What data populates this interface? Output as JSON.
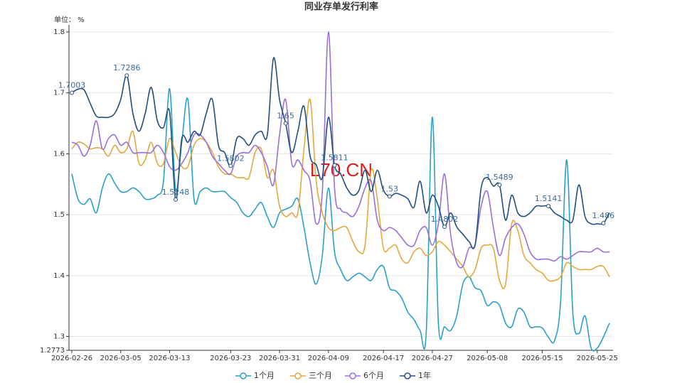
{
  "chart_data": {
    "type": "line",
    "title": "同业存单发行利率",
    "y_unit_label": "单位： %",
    "watermark": "L70.CN",
    "categories": [
      "2026-02-26",
      null,
      null,
      null,
      null,
      null,
      null,
      null,
      "2026-03-05",
      null,
      null,
      null,
      null,
      null,
      null,
      null,
      "2026-03-13",
      null,
      null,
      null,
      null,
      null,
      null,
      null,
      null,
      null,
      "2026-03-23",
      null,
      null,
      null,
      null,
      null,
      null,
      null,
      "2026-03-31",
      null,
      null,
      null,
      null,
      null,
      null,
      null,
      "2026-04-09",
      null,
      null,
      null,
      null,
      null,
      null,
      null,
      null,
      "2026-04-17",
      null,
      null,
      null,
      null,
      null,
      null,
      null,
      "2026-04-27",
      null,
      null,
      null,
      null,
      null,
      null,
      null,
      null,
      "2026-05-08",
      null,
      null,
      null,
      null,
      null,
      null,
      null,
      null,
      "2026-05-15",
      null,
      null,
      null,
      null,
      null,
      null,
      null,
      null,
      "2026-05-25",
      null,
      null
    ],
    "ylim": [
      1.2773,
      1.8
    ],
    "yticks": [
      1.2773,
      1.3,
      1.4,
      1.5,
      1.6,
      1.7,
      1.8
    ],
    "grid": true,
    "legend": "bottom",
    "smooth": true,
    "series": [
      {
        "name": "1个月",
        "color": "#2a9fc9",
        "values": [
          1.567,
          1.526,
          1.517,
          1.526,
          1.503,
          1.544,
          1.567,
          1.552,
          1.538,
          1.538,
          1.544,
          1.538,
          1.526,
          1.526,
          1.532,
          1.555,
          1.707,
          1.54,
          1.619,
          1.689,
          1.526,
          1.538,
          1.544,
          1.538,
          1.538,
          1.538,
          1.528,
          1.52,
          1.503,
          1.497,
          1.509,
          1.52,
          1.497,
          1.479,
          1.503,
          1.509,
          1.514,
          1.526,
          1.479,
          1.421,
          1.386,
          1.433,
          1.544,
          1.439,
          1.41,
          1.392,
          1.398,
          1.404,
          1.398,
          1.392,
          1.41,
          1.415,
          1.38,
          1.375,
          1.363,
          1.34,
          1.328,
          1.31,
          1.305,
          1.66,
          1.322,
          1.316,
          1.31,
          1.334,
          1.386,
          1.398,
          1.38,
          1.375,
          1.351,
          1.357,
          1.351,
          1.322,
          1.316,
          1.345,
          1.34,
          1.316,
          1.316,
          1.314,
          1.299,
          1.293,
          1.357,
          1.59,
          1.34,
          1.305,
          1.334,
          1.281,
          1.281,
          1.299,
          1.322
        ]
      },
      {
        "name": "三个月",
        "color": "#e3a83c",
        "values": [
          1.608,
          1.619,
          1.616,
          1.608,
          1.61,
          1.608,
          1.596,
          1.614,
          1.602,
          1.608,
          1.637,
          1.584,
          1.59,
          1.619,
          1.584,
          1.584,
          1.625,
          1.602,
          1.579,
          1.579,
          1.614,
          1.625,
          1.619,
          1.602,
          1.579,
          1.567,
          1.567,
          1.561,
          1.561,
          1.561,
          1.602,
          1.608,
          1.561,
          1.573,
          1.514,
          1.497,
          1.503,
          1.503,
          1.608,
          1.689,
          1.555,
          1.503,
          1.479,
          1.474,
          1.479,
          1.479,
          1.456,
          1.439,
          1.45,
          1.573,
          1.526,
          1.445,
          1.445,
          1.45,
          1.427,
          1.421,
          1.439,
          1.445,
          1.433,
          1.439,
          1.456,
          1.45,
          1.439,
          1.427,
          1.415,
          1.398,
          1.41,
          1.445,
          1.45,
          1.445,
          1.392,
          1.386,
          1.485,
          1.474,
          1.433,
          1.421,
          1.41,
          1.404,
          1.392,
          1.392,
          1.398,
          1.421,
          1.415,
          1.41,
          1.41,
          1.41,
          1.415,
          1.415,
          1.398
        ]
      },
      {
        "name": "6个月",
        "color": "#9a6fd6",
        "values": [
          1.619,
          1.614,
          1.596,
          1.614,
          1.654,
          1.608,
          1.625,
          1.631,
          1.614,
          1.619,
          1.602,
          1.602,
          1.602,
          1.602,
          1.614,
          1.602,
          1.579,
          1.573,
          1.584,
          1.602,
          1.631,
          1.631,
          1.619,
          1.596,
          1.584,
          1.573,
          1.567,
          1.596,
          1.602,
          1.602,
          1.614,
          1.602,
          1.579,
          1.549,
          1.631,
          1.689,
          1.584,
          1.59,
          1.573,
          1.555,
          1.485,
          1.538,
          1.8,
          1.544,
          1.509,
          1.503,
          1.497,
          1.514,
          1.544,
          1.555,
          1.491,
          1.474,
          1.479,
          1.474,
          1.462,
          1.45,
          1.45,
          1.474,
          1.479,
          1.45,
          1.485,
          1.567,
          1.468,
          1.421,
          1.415,
          1.445,
          1.45,
          1.514,
          1.538,
          1.479,
          1.433,
          1.462,
          1.479,
          1.485,
          1.468,
          1.439,
          1.427,
          1.427,
          1.427,
          1.424,
          1.431,
          1.427,
          1.433,
          1.439,
          1.439,
          1.439,
          1.445,
          1.439,
          1.439
        ]
      },
      {
        "name": "1年",
        "color": "#1f4f7d",
        "values": [
          1.7003,
          1.706,
          1.705,
          1.683,
          1.662,
          1.66,
          1.66,
          1.666,
          1.689,
          1.7286,
          1.666,
          1.637,
          1.666,
          1.709,
          1.654,
          1.643,
          1.669,
          1.5248,
          1.625,
          1.619,
          1.637,
          1.631,
          1.666,
          1.689,
          1.614,
          1.602,
          1.5802,
          1.625,
          1.625,
          1.614,
          1.631,
          1.637,
          1.631,
          1.757,
          1.689,
          1.65,
          1.602,
          1.637,
          1.678,
          1.596,
          1.582,
          1.561,
          1.66,
          1.5811,
          1.567,
          1.544,
          1.532,
          1.54,
          1.573,
          1.538,
          1.573,
          1.54,
          1.53,
          1.535,
          1.532,
          1.526,
          1.512,
          1.555,
          1.503,
          1.532,
          1.514,
          1.4802,
          1.503,
          1.48,
          1.468,
          1.456,
          1.45,
          1.544,
          1.561,
          1.547,
          1.5489,
          1.491,
          1.532,
          1.503,
          1.497,
          1.503,
          1.514,
          1.514,
          1.5141,
          1.503,
          1.497,
          1.491,
          1.491,
          1.549,
          1.497,
          1.485,
          1.485,
          1.486,
          1.503
        ],
        "value_labels": [
          "1.7003",
          null,
          null,
          null,
          null,
          null,
          null,
          null,
          null,
          "1.7286",
          null,
          null,
          null,
          null,
          null,
          null,
          null,
          "1.5248",
          null,
          null,
          null,
          null,
          null,
          null,
          null,
          null,
          "1.5802",
          null,
          null,
          null,
          null,
          null,
          null,
          null,
          null,
          "1.65",
          null,
          null,
          null,
          null,
          null,
          null,
          null,
          "1.5811",
          null,
          null,
          null,
          null,
          null,
          null,
          null,
          null,
          "1.53",
          null,
          null,
          null,
          null,
          null,
          null,
          null,
          null,
          "1.4802",
          null,
          null,
          null,
          null,
          null,
          null,
          null,
          null,
          "1.5489",
          null,
          null,
          null,
          null,
          null,
          null,
          null,
          "1.5141",
          null,
          null,
          null,
          null,
          null,
          null,
          null,
          null,
          "1.486",
          null
        ]
      }
    ]
  }
}
